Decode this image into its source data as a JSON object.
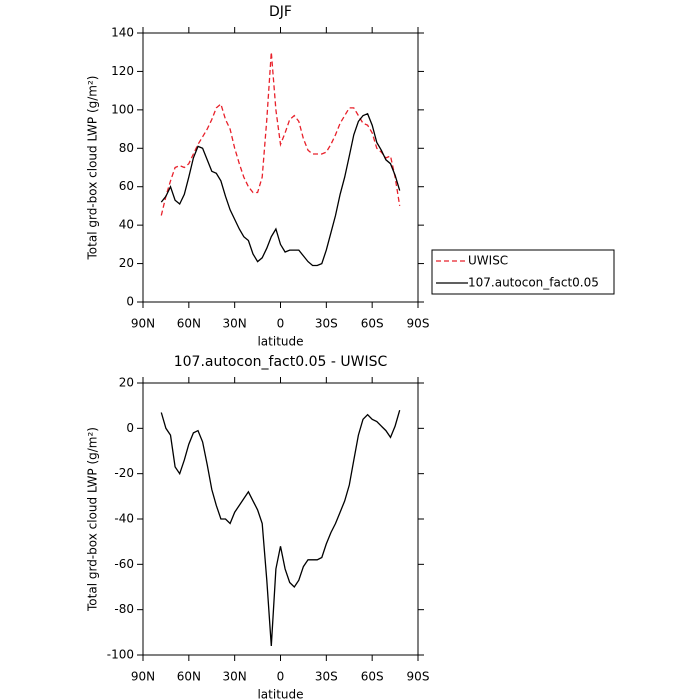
{
  "chart_data": [
    {
      "type": "line",
      "title": "DJF",
      "xlabel": "latitude",
      "ylabel": "Total grd-box cloud LWP (g/m²)",
      "x": [
        78,
        75,
        72,
        69,
        66,
        63,
        60,
        57,
        54,
        51,
        48,
        45,
        42,
        39,
        36,
        33,
        30,
        27,
        24,
        21,
        18,
        15,
        12,
        9,
        6,
        3,
        0,
        -3,
        -6,
        -9,
        -12,
        -15,
        -18,
        -21,
        -24,
        -27,
        -30,
        -33,
        -36,
        -39,
        -42,
        -45,
        -48,
        -51,
        -54,
        -57,
        -60,
        -63,
        -66,
        -69,
        -72,
        -75,
        -78
      ],
      "xlim": [
        90,
        -90
      ],
      "xticks": [
        {
          "value": 90,
          "label": "90N"
        },
        {
          "value": 60,
          "label": "60N"
        },
        {
          "value": 30,
          "label": "30N"
        },
        0,
        {
          "value": -30,
          "label": "30S"
        },
        {
          "value": -60,
          "label": "60S"
        },
        {
          "value": -90,
          "label": "90S"
        }
      ],
      "ylim": [
        0,
        140
      ],
      "yticks": [
        0,
        20,
        40,
        60,
        80,
        100,
        120,
        140
      ],
      "legend": "right",
      "series": [
        {
          "name": "UWISC",
          "color": "#e8202a",
          "dash": true,
          "values": [
            45,
            55,
            63,
            70,
            71,
            70,
            72,
            77,
            82,
            86,
            90,
            95,
            101,
            103,
            95,
            90,
            80,
            72,
            65,
            60,
            57,
            57,
            65,
            95,
            130,
            100,
            82,
            88,
            95,
            97,
            94,
            85,
            79,
            77,
            77,
            77,
            78,
            82,
            87,
            93,
            97,
            101,
            101,
            97,
            93,
            92,
            88,
            80,
            78,
            75,
            76,
            65,
            50
          ]
        },
        {
          "name": "107.autocon_fact0.05",
          "color": "#000000",
          "dash": false,
          "values": [
            52,
            55,
            60,
            53,
            51,
            56,
            65,
            75,
            81,
            80,
            74,
            68,
            67,
            63,
            55,
            48,
            43,
            38,
            34,
            32,
            25,
            21,
            23,
            28,
            34,
            38,
            30,
            26,
            27,
            27,
            27,
            24,
            21,
            19,
            19,
            20,
            27,
            36,
            45,
            56,
            65,
            76,
            87,
            94,
            97,
            98,
            92,
            83,
            79,
            74,
            72,
            66,
            58
          ]
        }
      ]
    },
    {
      "type": "line",
      "title": "107.autocon_fact0.05 - UWISC",
      "xlabel": "latitude",
      "ylabel": "Total grd-box cloud LWP (g/m²)",
      "x": [
        78,
        75,
        72,
        69,
        66,
        63,
        60,
        57,
        54,
        51,
        48,
        45,
        42,
        39,
        36,
        33,
        30,
        27,
        24,
        21,
        18,
        15,
        12,
        9,
        6,
        3,
        0,
        -3,
        -6,
        -9,
        -12,
        -15,
        -18,
        -21,
        -24,
        -27,
        -30,
        -33,
        -36,
        -39,
        -42,
        -45,
        -48,
        -51,
        -54,
        -57,
        -60,
        -63,
        -66,
        -69,
        -72,
        -75,
        -78
      ],
      "xlim": [
        90,
        -90
      ],
      "xticks": [
        {
          "value": 90,
          "label": "90N"
        },
        {
          "value": 60,
          "label": "60N"
        },
        {
          "value": 30,
          "label": "30N"
        },
        0,
        {
          "value": -30,
          "label": "30S"
        },
        {
          "value": -60,
          "label": "60S"
        },
        {
          "value": -90,
          "label": "90S"
        }
      ],
      "ylim": [
        -100,
        20
      ],
      "yticks": [
        -100,
        -80,
        -60,
        -40,
        -20,
        0,
        20
      ],
      "series": [
        {
          "color": "#000000",
          "dash": false,
          "values": [
            7,
            0,
            -3,
            -17,
            -20,
            -14,
            -7,
            -2,
            -1,
            -6,
            -16,
            -27,
            -34,
            -40,
            -40,
            -42,
            -37,
            -34,
            -31,
            -28,
            -32,
            -36,
            -42,
            -67,
            -96,
            -62,
            -52,
            -62,
            -68,
            -70,
            -67,
            -61,
            -58,
            -58,
            -58,
            -57,
            -51,
            -46,
            -42,
            -37,
            -32,
            -25,
            -14,
            -3,
            4,
            6,
            4,
            3,
            1,
            -1,
            -4,
            1,
            8
          ]
        }
      ]
    }
  ]
}
